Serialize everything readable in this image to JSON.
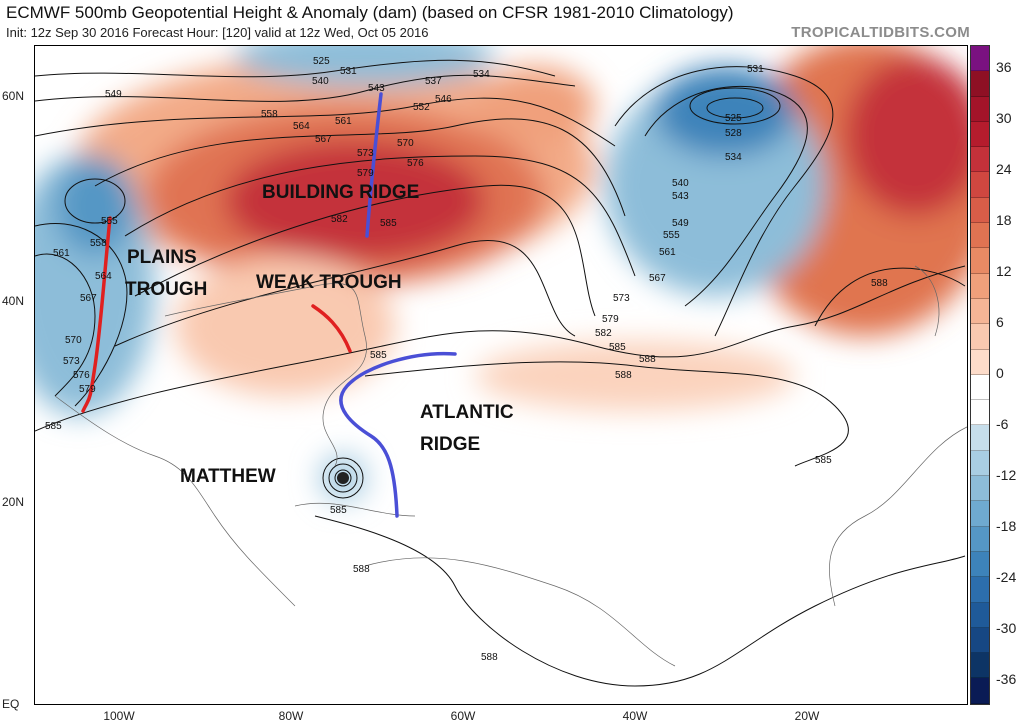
{
  "header": {
    "title": "ECMWF 500mb Geopotential Height & Anomaly (dam) (based on CFSR 1981-2010 Climatology)",
    "subtitle": "Init: 12z Sep 30 2016   Forecast Hour: [120]   valid at 12z Wed, Oct 05 2016",
    "brand": "TROPICALTIDBITS.COM"
  },
  "axes": {
    "latitudes": [
      "60N",
      "40N",
      "20N",
      "EQ"
    ],
    "longitudes": [
      "100W",
      "80W",
      "60W",
      "40W",
      "20W"
    ]
  },
  "colorbar": {
    "labels": [
      "36",
      "30",
      "24",
      "18",
      "12",
      "6",
      "0",
      "-6",
      "-12",
      "-18",
      "-24",
      "-30",
      "-36"
    ],
    "colors": [
      "#7a1180",
      "#8e1024",
      "#a31429",
      "#b51c2d",
      "#c4313a",
      "#cf4740",
      "#d85d48",
      "#e07352",
      "#e88a64",
      "#f0a07b",
      "#f5b596",
      "#f9c9b0",
      "#fddcca",
      "#ffffff",
      "#ffffff",
      "#c7deeb",
      "#a9cee3",
      "#8dbdd9",
      "#6faad0",
      "#5597c5",
      "#3d83ba",
      "#2c6ead",
      "#1f5a99",
      "#164783",
      "#0d3465",
      "#0a1b55"
    ]
  },
  "contour_labels": [
    "525",
    "531",
    "537",
    "534",
    "540",
    "543",
    "546",
    "549",
    "552",
    "558",
    "561",
    "564",
    "567",
    "570",
    "573",
    "576",
    "579",
    "582",
    "585",
    "588",
    "531",
    "525",
    "528",
    "534",
    "540",
    "543",
    "549",
    "555",
    "561",
    "567",
    "573",
    "579",
    "582",
    "585",
    "588",
    "588",
    "585",
    "585",
    "585",
    "588",
    "588",
    "555",
    "558",
    "561",
    "564",
    "567",
    "570",
    "573",
    "576",
    "579",
    "585"
  ],
  "annotations": {
    "building_ridge": "BUILDING RIDGE",
    "plains_trough_1": "PLAINS",
    "plains_trough_2": "TROUGH",
    "weak_trough": "WEAK TROUGH",
    "atlantic_ridge_1": "ATLANTIC",
    "atlantic_ridge_2": "RIDGE",
    "matthew": "MATTHEW"
  },
  "colors": {
    "ridge_line": "#4a4fd6",
    "trough_line": "#e02020"
  }
}
